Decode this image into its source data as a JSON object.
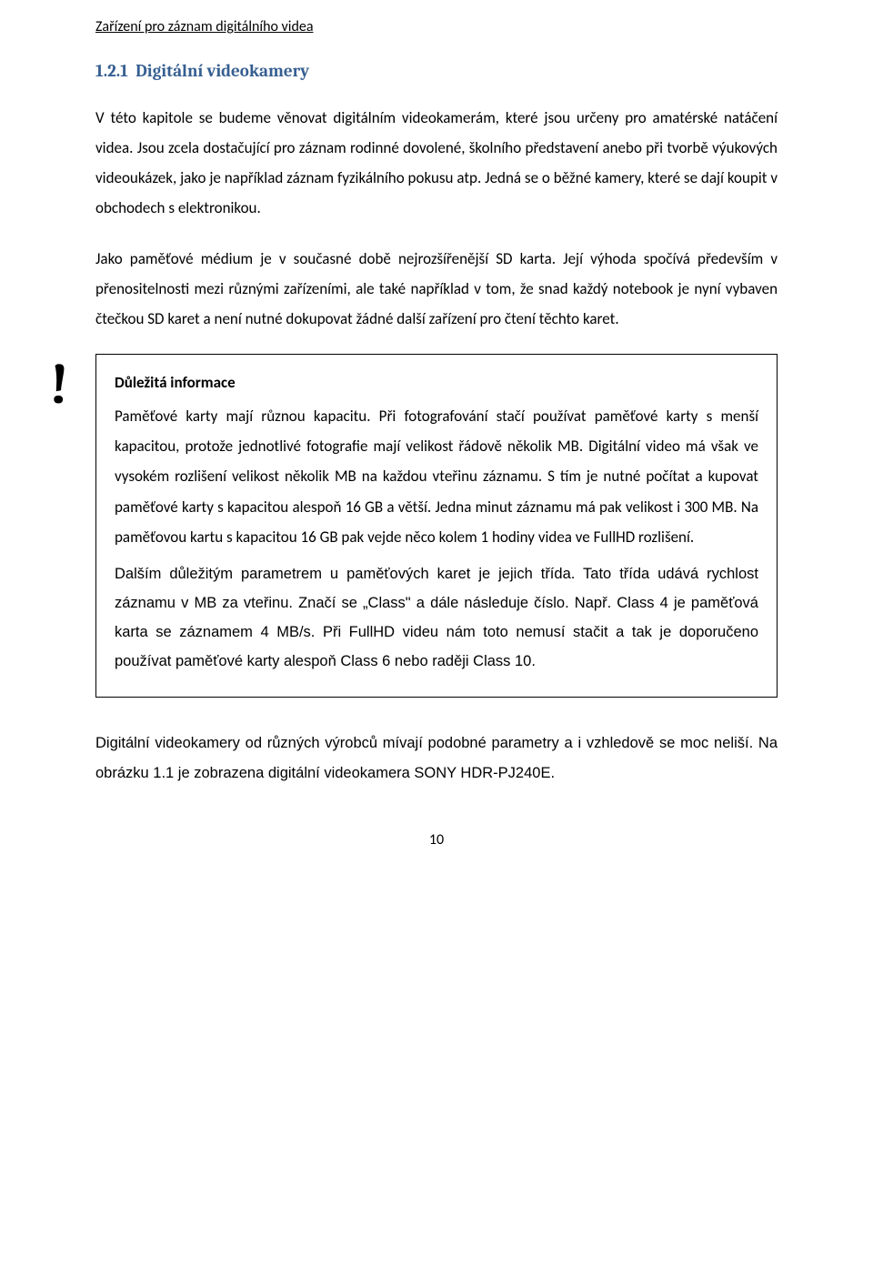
{
  "header": {
    "running_title": "Zařízení pro záznam digitálního videa"
  },
  "section": {
    "number": "1.2.1",
    "title": "Digitální videokamery"
  },
  "body": {
    "p1": "V této kapitole se budeme věnovat digitálním videokamerám, které jsou určeny pro amatérské natáčení videa. Jsou zcela dostačující pro záznam rodinné dovolené, školního představení anebo při tvorbě výukových videoukázek, jako je například záznam fyzikálního pokusu atp. Jedná se o běžné kamery, které se dají koupit v obchodech s elektronikou.",
    "p2": "Jako paměťové médium je v současné době nejrozšířenější SD karta. Její výhoda spočívá především v přenositelnosti mezi různými zařízeními, ale také například v tom, že snad každý notebook je nyní vybaven čtečkou SD karet a není nutné dokupovat žádné další zařízení pro čtení těchto karet."
  },
  "callout": {
    "icon_glyph": "!",
    "title": "Důležitá informace",
    "p1": "Paměťové karty mají různou kapacitu. Při fotografování stačí používat paměťové karty s menší kapacitou, protože jednotlivé fotografie mají velikost řádově několik MB. Digitální video má však ve vysokém rozlišení velikost několik MB na každou vteřinu záznamu. S tím je nutné počítat a kupovat paměťové karty s kapacitou alespoň 16 GB a větší. Jedna minut záznamu má pak velikost i 300 MB. Na paměťovou kartu s kapacitou 16 GB pak vejde něco kolem 1 hodiny videa ve FullHD rozlišení.",
    "p2": "Dalším důležitým parametrem u paměťových karet je jejich třída. Tato třída udává rychlost záznamu v MB za vteřinu. Značí se „Class\" a dále následuje číslo. Např. Class 4 je paměťová karta se záznamem 4 MB/s. Při FullHD videu nám toto nemusí stačit a tak je doporučeno používat paměťové karty alespoň Class 6 nebo raději Class 10."
  },
  "closing": {
    "p1": "Digitální videokamery od různých výrobců mívají podobné parametry a i vzhledově se moc neliší. Na obrázku 1.1 je zobrazena digitální videokamera SONY HDR-PJ240E."
  },
  "page_number": "10",
  "colors": {
    "heading": "#365f91",
    "text": "#000000",
    "bg": "#ffffff",
    "box_border": "#000000"
  },
  "fonts": {
    "body": "Calibri",
    "heading": "Cambria",
    "closing": "Arial"
  }
}
